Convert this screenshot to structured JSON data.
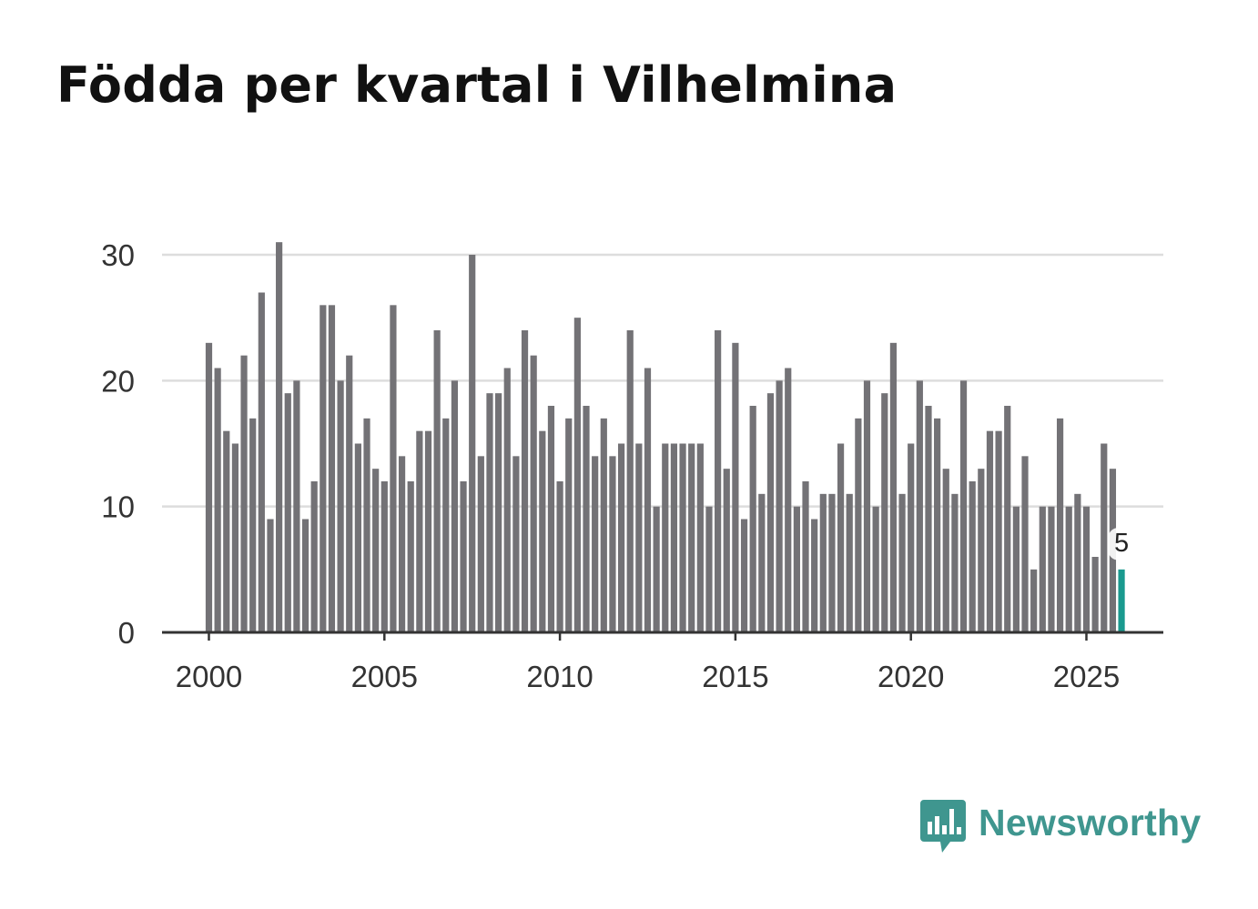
{
  "title": "Födda per kvartal i Vilhelmina",
  "brand": {
    "name": "Newsworthy",
    "logo_icon": "bar-chart-speech-bubble-icon",
    "color": "#3f968f"
  },
  "colors": {
    "bar": "#737276",
    "highlight": "#1a9a8f",
    "grid": "#dddddd",
    "axis": "#333333",
    "text": "#333333"
  },
  "chart_data": {
    "type": "bar",
    "title": "Födda per kvartal i Vilhelmina",
    "xlabel": "",
    "ylabel": "",
    "frequency": "quarterly",
    "start": "2000 Q1",
    "ylim": [
      0,
      33
    ],
    "yticks": [
      0,
      10,
      20,
      30
    ],
    "xticks": [
      "2000",
      "2005",
      "2010",
      "2015",
      "2020",
      "2025"
    ],
    "grid": true,
    "values": [
      23,
      21,
      16,
      15,
      22,
      17,
      27,
      9,
      31,
      19,
      20,
      9,
      12,
      26,
      26,
      20,
      22,
      15,
      17,
      13,
      12,
      26,
      14,
      12,
      16,
      16,
      24,
      17,
      20,
      12,
      30,
      14,
      19,
      19,
      21,
      14,
      24,
      22,
      16,
      18,
      12,
      17,
      25,
      18,
      14,
      17,
      14,
      15,
      24,
      15,
      21,
      10,
      15,
      15,
      15,
      15,
      15,
      10,
      24,
      13,
      23,
      9,
      18,
      11,
      19,
      20,
      21,
      10,
      12,
      9,
      11,
      11,
      15,
      11,
      17,
      20,
      10,
      19,
      23,
      11,
      15,
      20,
      18,
      17,
      13,
      11,
      20,
      12,
      13,
      16,
      16,
      18,
      10,
      14,
      5,
      10,
      10,
      17,
      10,
      11,
      10,
      6,
      15,
      13,
      5
    ],
    "highlight_last": true,
    "annotation": {
      "label": "5"
    }
  }
}
